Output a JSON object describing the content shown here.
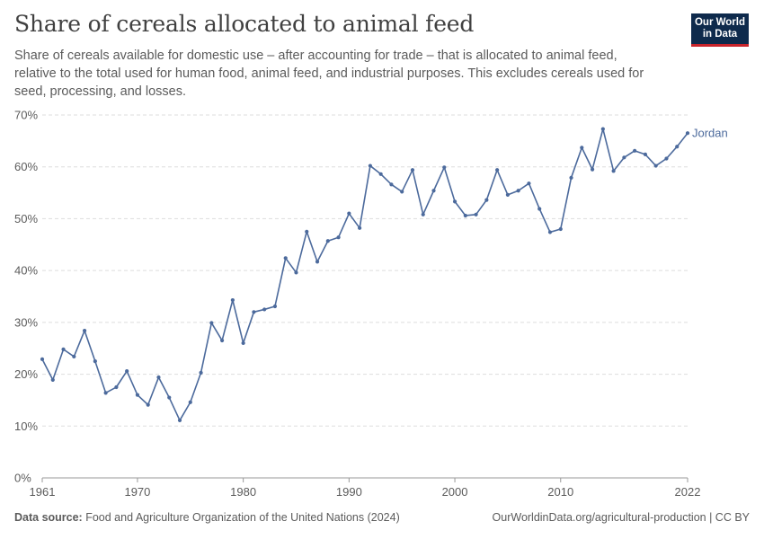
{
  "title": "Share of cereals allocated to animal feed",
  "subtitle": "Share of cereals available for domestic use – after accounting for trade – that is allocated to animal feed, relative to the total used for human food, animal feed, and industrial purposes. This excludes cereals used for seed, processing, and losses.",
  "logo": {
    "line1": "Our World",
    "line2": "in Data"
  },
  "footer": {
    "source_label": "Data source:",
    "source_text": "Food and Agriculture Organization of the United Nations (2024)",
    "right_text": "OurWorldinData.org/agricultural-production | CC BY"
  },
  "colors": {
    "series": "#4c6a9c",
    "grid": "#dddddd",
    "axis": "#5b5b5b"
  },
  "chart_data": {
    "type": "line",
    "title": "Share of cereals allocated to animal feed",
    "xlabel": "",
    "ylabel": "",
    "xlim": [
      1961,
      2022
    ],
    "ylim": [
      0,
      70
    ],
    "x_ticks": [
      1961,
      1970,
      1980,
      1990,
      2000,
      2010,
      2022
    ],
    "y_ticks": [
      0,
      10,
      20,
      30,
      40,
      50,
      60,
      70
    ],
    "y_tick_labels": [
      "0%",
      "10%",
      "20%",
      "30%",
      "40%",
      "50%",
      "60%",
      "70%"
    ],
    "grid": "horizontal dashed",
    "series": [
      {
        "name": "Jordan",
        "x": [
          1961,
          1962,
          1963,
          1964,
          1965,
          1966,
          1967,
          1968,
          1969,
          1970,
          1971,
          1972,
          1973,
          1974,
          1975,
          1976,
          1977,
          1978,
          1979,
          1980,
          1981,
          1982,
          1983,
          1984,
          1985,
          1986,
          1987,
          1988,
          1989,
          1990,
          1991,
          1992,
          1993,
          1994,
          1995,
          1996,
          1997,
          1998,
          1999,
          2000,
          2001,
          2002,
          2003,
          2004,
          2005,
          2006,
          2007,
          2008,
          2009,
          2010,
          2011,
          2012,
          2013,
          2014,
          2015,
          2016,
          2017,
          2018,
          2019,
          2020,
          2021,
          2022
        ],
        "values": [
          22.9,
          18.9,
          24.8,
          23.4,
          28.4,
          22.5,
          16.4,
          17.5,
          20.6,
          16.0,
          14.1,
          19.4,
          15.5,
          11.1,
          14.6,
          20.3,
          29.9,
          26.5,
          34.3,
          26.0,
          32.0,
          32.5,
          33.1,
          42.4,
          39.6,
          47.5,
          41.7,
          45.7,
          46.4,
          51.0,
          48.2,
          60.2,
          58.6,
          56.6,
          55.2,
          59.4,
          50.8,
          55.4,
          59.9,
          53.3,
          50.6,
          50.8,
          53.6,
          59.4,
          54.6,
          55.4,
          56.8,
          51.9,
          47.4,
          48.0,
          57.9,
          63.7,
          59.5,
          67.3,
          59.2,
          61.8,
          63.1,
          62.4,
          60.2,
          61.6,
          63.9,
          66.5
        ]
      }
    ]
  }
}
